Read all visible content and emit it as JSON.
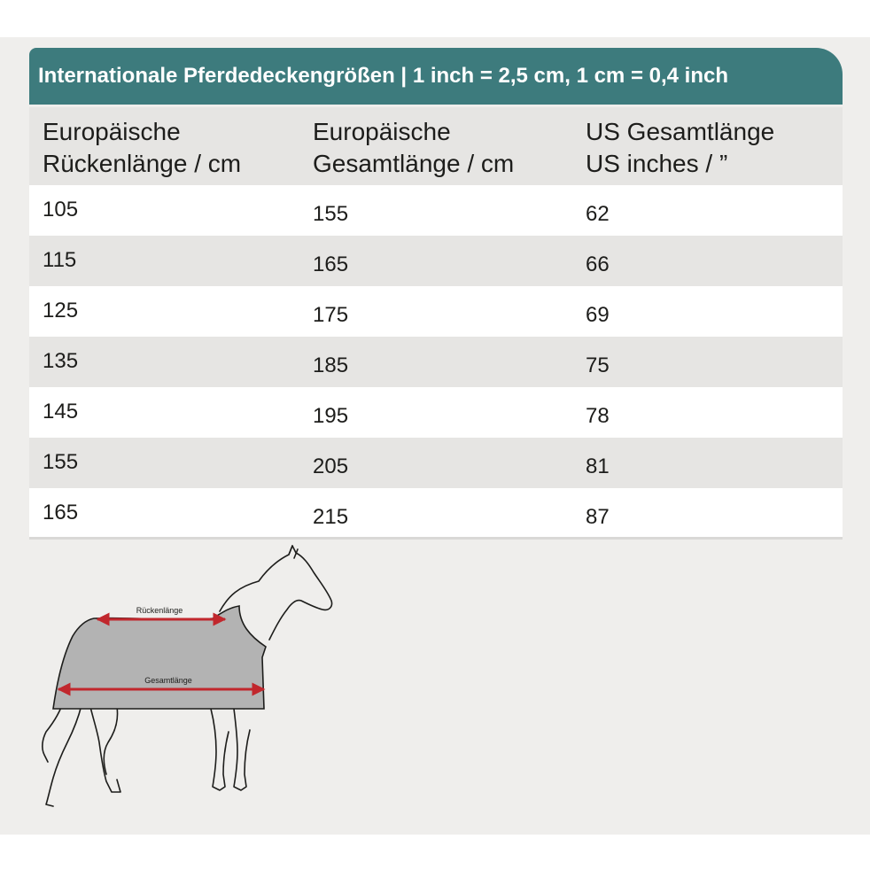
{
  "title": "Internationale Pferdedeckengrößen | 1 inch = 2,5 cm, 1 cm = 0,4 inch",
  "columns": [
    [
      "Europäische",
      "Rückenlänge / cm"
    ],
    [
      "Europäische",
      "Gesamtlänge / cm"
    ],
    [
      "US Gesamtlänge",
      "US inches / ”"
    ]
  ],
  "rows": [
    [
      "105",
      "155",
      "62"
    ],
    [
      "115",
      "165",
      "66"
    ],
    [
      "125",
      "175",
      "69"
    ],
    [
      "135",
      "185",
      "75"
    ],
    [
      "145",
      "195",
      "78"
    ],
    [
      "155",
      "205",
      "81"
    ],
    [
      "165",
      "215",
      "87"
    ]
  ],
  "diagram": {
    "back_label": "Rückenlänge",
    "total_label": "Gesamtlänge"
  },
  "colors": {
    "header_bg": "#3d7b7d",
    "arrow": "#c1272d",
    "blanket": "#b3b3b3"
  }
}
